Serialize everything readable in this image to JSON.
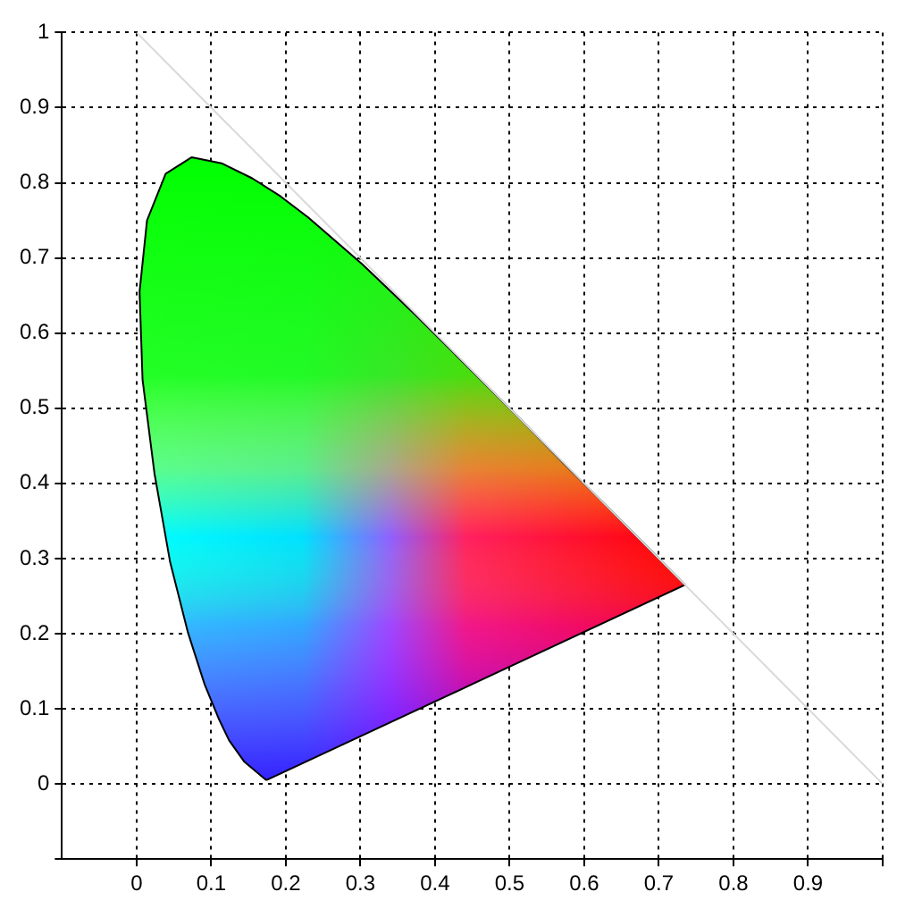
{
  "chart_data": {
    "type": "area",
    "xlim": [
      -0.1,
      1.0
    ],
    "ylim": [
      -0.1,
      1.0
    ],
    "xticks": [
      0,
      0.1,
      0.2,
      0.3,
      0.4,
      0.5,
      0.6,
      0.7,
      0.8,
      0.9,
      {
        "value": 1.0,
        "label": null
      }
    ],
    "yticks": [
      {
        "value": -0.1,
        "label": null
      },
      0,
      0.1,
      0.2,
      0.3,
      0.4,
      0.5,
      0.6,
      0.7,
      0.8,
      0.9,
      1
    ],
    "grid": true,
    "legend": false,
    "series": [
      {
        "type": "line",
        "color": "#d9d9d9",
        "x": [
          0,
          1
        ],
        "values": [
          1,
          0
        ]
      },
      {
        "type": "area",
        "color": "#000000",
        "x": [
          0.174,
          0.144,
          0.124,
          0.11,
          0.091,
          0.069,
          0.045,
          0.024,
          0.008,
          0.004,
          0.014,
          0.039,
          0.074,
          0.114,
          0.155,
          0.193,
          0.23,
          0.302,
          0.373,
          0.444,
          0.513,
          0.575,
          0.627,
          0.692,
          0.719,
          0.735,
          0.174
        ],
        "values": [
          0.005,
          0.03,
          0.058,
          0.087,
          0.133,
          0.201,
          0.295,
          0.413,
          0.538,
          0.655,
          0.75,
          0.812,
          0.834,
          0.826,
          0.806,
          0.782,
          0.754,
          0.692,
          0.625,
          0.555,
          0.487,
          0.424,
          0.373,
          0.308,
          0.281,
          0.265,
          0.005
        ]
      }
    ]
  }
}
